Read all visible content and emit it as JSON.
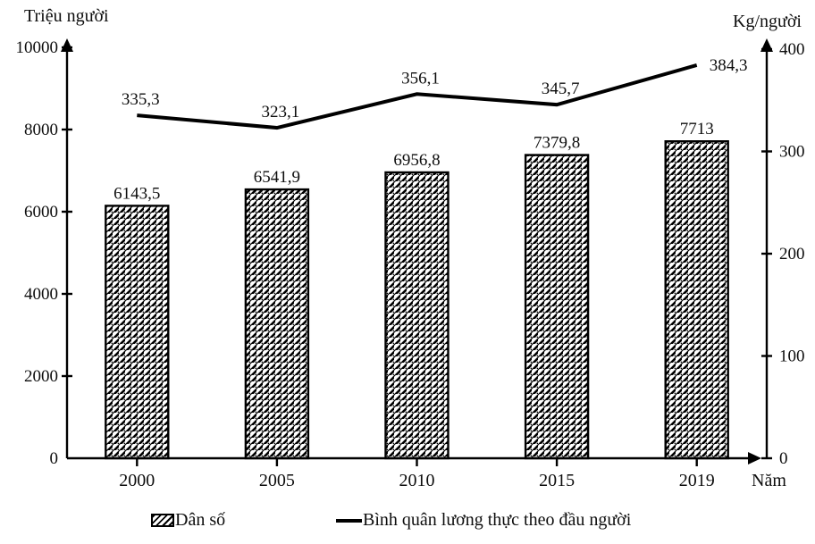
{
  "chart_data": {
    "type": "combo-bar-line",
    "categories": [
      "2000",
      "2005",
      "2010",
      "2015",
      "2019"
    ],
    "series": [
      {
        "name": "Dân số",
        "type": "bar",
        "axis": "left",
        "values": [
          6143.5,
          6541.9,
          6956.8,
          7379.8,
          7713
        ],
        "labels": [
          "6143,5",
          "6541,9",
          "6956,8",
          "7379,8",
          "7713"
        ]
      },
      {
        "name": "Bình quân lương thực theo đầu người",
        "type": "line",
        "axis": "right",
        "values": [
          335.3,
          323.1,
          356.1,
          345.7,
          384.3
        ],
        "labels": [
          "335,3",
          "323,1",
          "356,1",
          "345,7",
          "384,3"
        ]
      }
    ],
    "left_axis": {
      "title": "Triệu người",
      "min": 0,
      "max": 10000,
      "ticks": [
        0,
        2000,
        4000,
        6000,
        8000,
        10000
      ],
      "tick_labels": [
        "0",
        "2000",
        "4000",
        "6000",
        "8000",
        "10000"
      ]
    },
    "right_axis": {
      "title": "Kg/người",
      "min": 0,
      "max": 400,
      "ticks": [
        0,
        100,
        200,
        300,
        400
      ],
      "tick_labels": [
        "0",
        "100",
        "200",
        "300",
        "400"
      ]
    },
    "x_axis": {
      "title": "Năm"
    },
    "legend": [
      {
        "label": "Dân số",
        "swatch": "hatched-bar"
      },
      {
        "label": "Bình quân lương thực theo đầu người",
        "swatch": "line"
      }
    ],
    "style": {
      "foreground": "#000000",
      "background": "#ffffff",
      "grid": "off",
      "legend_position": "bottom"
    }
  }
}
